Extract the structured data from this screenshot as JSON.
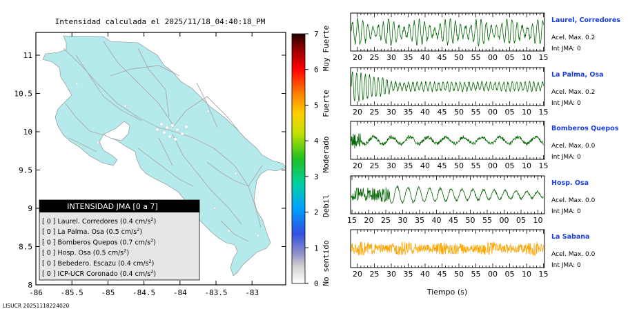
{
  "map": {
    "title": "Intensidad calculada el 2025/11/18_04:40:18_PM",
    "x_ticks": [
      "-86",
      "-85.5",
      "-85",
      "-84.5",
      "-84",
      "-83.5",
      "-83"
    ],
    "y_ticks": [
      "8",
      "8.5",
      "9",
      "9.5",
      "10",
      "10.5",
      "11"
    ],
    "footer_id": "LISUCR 20251118224020",
    "legend": {
      "header": "INTENSIDAD JMA [0 a 7]",
      "items": [
        {
          "jma": "[ 0 ]",
          "name": "Laurel. Corredores (0.4 cm/s",
          "unit_exp": "2",
          "close": ")"
        },
        {
          "jma": "[ 0 ]",
          "name": "La Palma. Osa (0.5 cm/s",
          "unit_exp": "2",
          "close": ")"
        },
        {
          "jma": "[ 0 ]",
          "name": "Bomberos Quepos (0.7 cm/s",
          "unit_exp": "2",
          "close": ")"
        },
        {
          "jma": "[ 0 ]",
          "name": "Hosp. Osa (0.5 cm/s",
          "unit_exp": "2",
          "close": ")"
        },
        {
          "jma": "[ 0 ]",
          "name": "Bebedero. Escazu (0.4 cm/s",
          "unit_exp": "2",
          "close": ")"
        },
        {
          "jma": "[ 0 ]",
          "name": "ICP-UCR Coronado (0.4 cm/s",
          "unit_exp": "2",
          "close": ")"
        }
      ]
    },
    "colorbar": {
      "ticks": [
        "0",
        "1",
        "2",
        "3",
        "4",
        "5",
        "6",
        "7"
      ],
      "labels": [
        "No sentido",
        "Debil",
        "Moderado",
        "Fuerte",
        "Muy Fuerte"
      ]
    },
    "colors": {
      "land": "#b5eaec",
      "ocean": "#ffffff",
      "roads": "#aaaaaa"
    }
  },
  "chart_data": [
    {
      "type": "line",
      "station": "Laurel, Corredores",
      "accel_label": "Acel. Max. 0.2",
      "int_label": "Int JMA: 0",
      "x_ticks": [
        "20",
        "25",
        "30",
        "35",
        "40",
        "45",
        "50",
        "55",
        "00",
        "05",
        "10",
        "15"
      ],
      "color": "#006400"
    },
    {
      "type": "line",
      "station": "La Palma, Osa",
      "accel_label": "Acel. Max. 0.2",
      "int_label": "Int JMA: 0",
      "x_ticks": [
        "20",
        "25",
        "30",
        "35",
        "40",
        "45",
        "50",
        "55",
        "00",
        "05",
        "10",
        "15"
      ],
      "color": "#006400"
    },
    {
      "type": "line",
      "station": "Bomberos Quepos",
      "accel_label": "Acel. Max. 0.0",
      "int_label": "Int JMA: 0",
      "x_ticks": [
        "20",
        "25",
        "30",
        "35",
        "40",
        "45",
        "50",
        "55",
        "00",
        "05",
        "10",
        "15"
      ],
      "color": "#006400"
    },
    {
      "type": "line",
      "station": "Hosp. Osa",
      "accel_label": "Acel. Max. 0.0",
      "int_label": "Int JMA: 0",
      "x_ticks": [
        "15",
        "20",
        "25",
        "30",
        "35",
        "40",
        "45",
        "50",
        "55",
        "00",
        "05",
        "10"
      ],
      "color": "#006400"
    },
    {
      "type": "line",
      "station": "La Sabana",
      "accel_label": "Acel. Max. 0.0",
      "int_label": "Int JMA: 0",
      "x_ticks": [
        "20",
        "25",
        "30",
        "35",
        "40",
        "45",
        "50",
        "55",
        "00",
        "05",
        "10",
        "15"
      ],
      "color": "#ffa500"
    }
  ],
  "xlabel": "Tiempo (s)"
}
